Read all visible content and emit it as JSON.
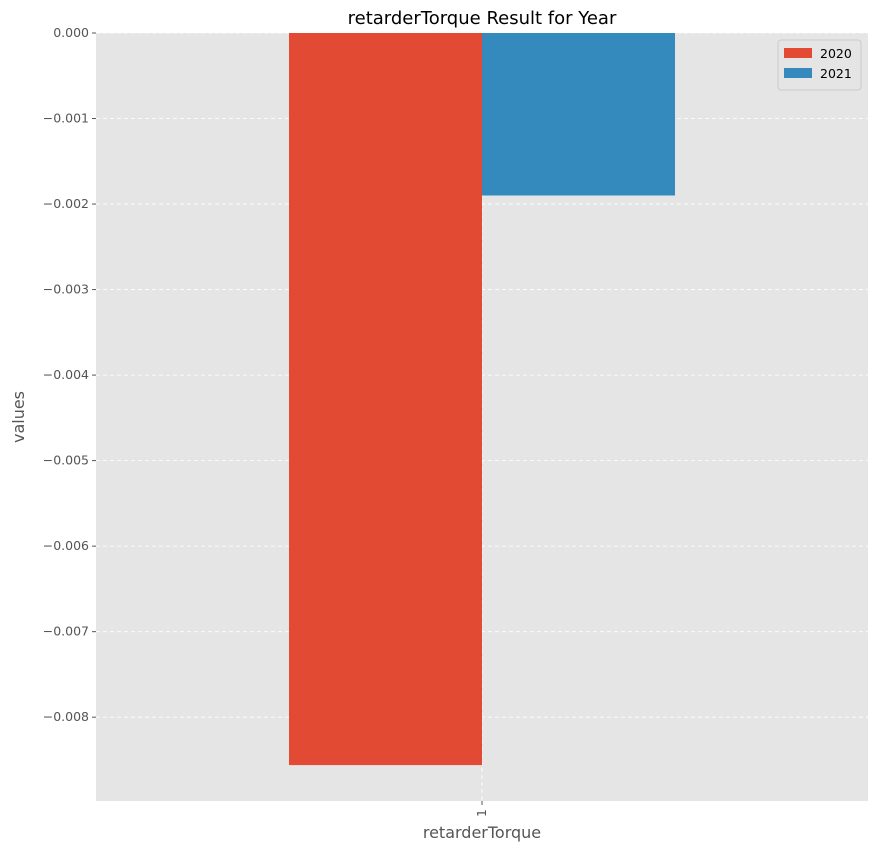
{
  "chart_data": {
    "type": "bar",
    "title": "retarderTorque Result for Year",
    "xlabel": "retarderTorque",
    "ylabel": "values",
    "categories": [
      "1"
    ],
    "series": [
      {
        "name": "2020",
        "values": [
          -0.00856
        ],
        "color": "#E24A33"
      },
      {
        "name": "2021",
        "values": [
          -0.0019
        ],
        "color": "#348ABD"
      }
    ],
    "ylim": [
      -0.00898,
      0.0
    ],
    "yticks": [
      0.0,
      -0.001,
      -0.002,
      -0.003,
      -0.004,
      -0.005,
      -0.006,
      -0.007,
      -0.008
    ],
    "ytick_labels": [
      "0.000",
      "−0.001",
      "−0.002",
      "−0.003",
      "−0.004",
      "−0.005",
      "−0.006",
      "−0.007",
      "−0.008"
    ],
    "grid": true,
    "legend": "top-right",
    "background": "#E5E5E5"
  }
}
